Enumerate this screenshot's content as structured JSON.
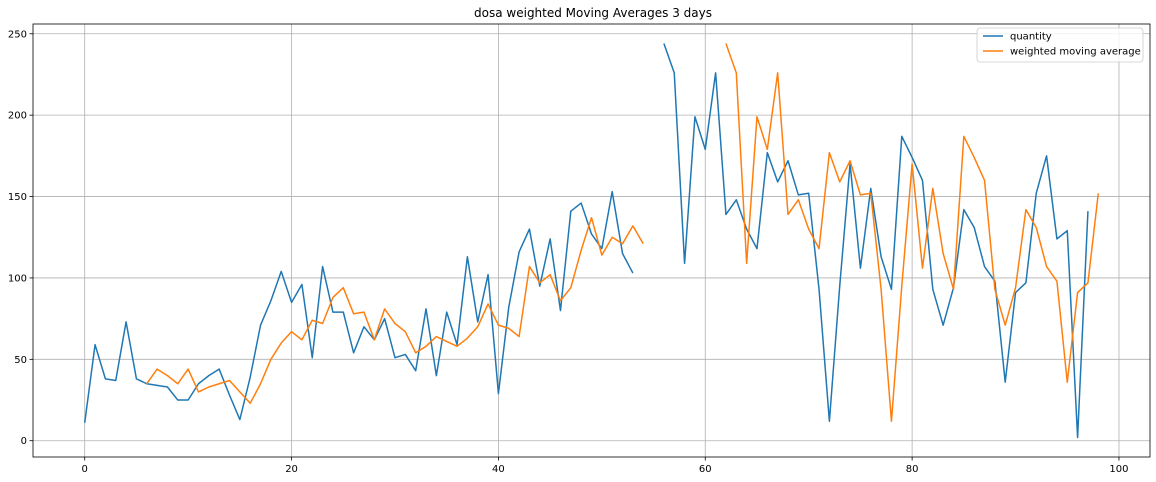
{
  "chart_data": {
    "type": "line",
    "title": "dosa weighted Moving Averages 3 days",
    "xlabel": "",
    "ylabel": "",
    "xlim": [
      -5,
      103
    ],
    "ylim": [
      -10,
      256
    ],
    "xticks": [
      0,
      20,
      40,
      60,
      80,
      100
    ],
    "yticks": [
      0,
      50,
      100,
      150,
      200,
      250
    ],
    "grid": true,
    "legend_position": "top-right",
    "series": [
      {
        "name": "quantity",
        "color": "#1f77b4",
        "points": [
          [
            0,
            11
          ],
          [
            1,
            59
          ],
          [
            2,
            38
          ],
          [
            3,
            37
          ],
          [
            4,
            73
          ],
          [
            5,
            38
          ],
          [
            6,
            35
          ],
          [
            7,
            34
          ],
          [
            8,
            33
          ],
          [
            9,
            25
          ],
          [
            10,
            25
          ],
          [
            11,
            35
          ],
          [
            12,
            40
          ],
          [
            13,
            44
          ],
          [
            14,
            28
          ],
          [
            15,
            13
          ],
          [
            16,
            39
          ],
          [
            17,
            71
          ],
          [
            18,
            86
          ],
          [
            19,
            104
          ],
          [
            20,
            85
          ],
          [
            21,
            96
          ],
          [
            22,
            51
          ],
          [
            23,
            107
          ],
          [
            24,
            79
          ],
          [
            25,
            79
          ],
          [
            26,
            54
          ],
          [
            27,
            70
          ],
          [
            28,
            62
          ],
          [
            29,
            75
          ],
          [
            30,
            51
          ],
          [
            31,
            53
          ],
          [
            32,
            43
          ],
          [
            33,
            81
          ],
          [
            34,
            40
          ],
          [
            35,
            79
          ],
          [
            36,
            59
          ],
          [
            37,
            113
          ],
          [
            38,
            73
          ],
          [
            39,
            102
          ],
          [
            40,
            29
          ],
          [
            41,
            82
          ],
          [
            42,
            116
          ],
          [
            43,
            130
          ],
          [
            44,
            95
          ],
          [
            45,
            124
          ],
          [
            46,
            80
          ],
          [
            47,
            141
          ],
          [
            48,
            146
          ],
          [
            49,
            127
          ],
          [
            50,
            118
          ],
          [
            51,
            153
          ],
          [
            52,
            115
          ],
          [
            53,
            103
          ],
          null,
          [
            56,
            244
          ],
          [
            57,
            226
          ],
          [
            58,
            109
          ],
          [
            59,
            199
          ],
          [
            60,
            179
          ],
          [
            61,
            226
          ],
          [
            62,
            139
          ],
          [
            63,
            148
          ],
          [
            64,
            130
          ],
          [
            65,
            118
          ],
          [
            66,
            177
          ],
          [
            67,
            159
          ],
          [
            68,
            172
          ],
          [
            69,
            151
          ],
          [
            70,
            152
          ],
          [
            71,
            93
          ],
          [
            72,
            12
          ],
          [
            73,
            95
          ],
          [
            74,
            170
          ],
          [
            75,
            106
          ],
          [
            76,
            155
          ],
          [
            77,
            113
          ],
          [
            78,
            93
          ],
          [
            79,
            187
          ],
          [
            80,
            174
          ],
          [
            81,
            160
          ],
          [
            82,
            93
          ],
          [
            83,
            71
          ],
          [
            84,
            94
          ],
          [
            85,
            142
          ],
          [
            86,
            131
          ],
          [
            87,
            107
          ],
          [
            88,
            98
          ],
          [
            89,
            36
          ],
          [
            90,
            91
          ],
          [
            91,
            97
          ],
          [
            92,
            152
          ],
          [
            93,
            175
          ],
          [
            94,
            124
          ],
          [
            95,
            129
          ],
          [
            96,
            2
          ],
          [
            97,
            141
          ]
        ]
      },
      {
        "name": "weighted moving average",
        "color": "#ff7f0e",
        "points": [
          [
            6,
            35
          ],
          [
            7,
            44
          ],
          [
            8,
            40
          ],
          [
            9,
            35
          ],
          [
            10,
            44
          ],
          [
            11,
            30
          ],
          [
            12,
            33
          ],
          [
            13,
            35
          ],
          [
            14,
            37
          ],
          [
            15,
            30
          ],
          [
            16,
            23
          ],
          [
            17,
            35
          ],
          [
            18,
            50
          ],
          [
            19,
            60
          ],
          [
            20,
            67
          ],
          [
            21,
            62
          ],
          [
            22,
            74
          ],
          [
            23,
            72
          ],
          [
            24,
            88
          ],
          [
            25,
            94
          ],
          [
            26,
            78
          ],
          [
            27,
            79
          ],
          [
            28,
            62
          ],
          [
            29,
            81
          ],
          [
            30,
            72
          ],
          [
            31,
            67
          ],
          [
            32,
            54
          ],
          [
            33,
            58
          ],
          [
            34,
            64
          ],
          [
            35,
            61
          ],
          [
            36,
            58
          ],
          [
            37,
            63
          ],
          [
            38,
            70
          ],
          [
            39,
            84
          ],
          [
            40,
            71
          ],
          [
            41,
            69
          ],
          [
            42,
            64
          ],
          [
            43,
            107
          ],
          [
            44,
            97
          ],
          [
            45,
            102
          ],
          [
            46,
            86
          ],
          [
            47,
            94
          ],
          [
            48,
            117
          ],
          [
            49,
            137
          ],
          [
            50,
            114
          ],
          [
            51,
            125
          ],
          [
            52,
            121
          ],
          [
            53,
            132
          ],
          [
            54,
            121
          ],
          null,
          [
            62,
            244
          ],
          [
            63,
            226
          ],
          [
            64,
            109
          ],
          [
            65,
            199
          ],
          [
            66,
            179
          ],
          [
            67,
            226
          ],
          [
            68,
            139
          ],
          [
            69,
            148
          ],
          [
            70,
            130
          ],
          [
            71,
            118
          ],
          [
            72,
            177
          ],
          [
            73,
            159
          ],
          [
            74,
            172
          ],
          [
            75,
            151
          ],
          [
            76,
            152
          ],
          [
            77,
            93
          ],
          [
            78,
            12
          ],
          [
            79,
            95
          ],
          [
            80,
            170
          ],
          [
            81,
            106
          ],
          [
            82,
            155
          ],
          [
            83,
            115
          ],
          [
            84,
            93
          ],
          [
            85,
            187
          ],
          [
            86,
            174
          ],
          [
            87,
            160
          ],
          [
            88,
            93
          ],
          [
            89,
            71
          ],
          [
            90,
            94
          ],
          [
            91,
            142
          ],
          [
            92,
            131
          ],
          [
            93,
            107
          ],
          [
            94,
            98
          ],
          [
            95,
            36
          ],
          [
            96,
            91
          ],
          [
            97,
            97
          ],
          [
            98,
            152
          ]
        ]
      }
    ]
  }
}
